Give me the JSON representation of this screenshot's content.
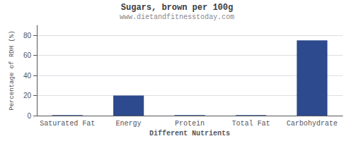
{
  "chart_data": {
    "type": "bar",
    "title": "Sugars, brown per 100g",
    "subtitle": "www.dietandfitnesstoday.com",
    "xlabel": "Different Nutrients",
    "ylabel": "Percentage of RDH (%)",
    "categories": [
      "Saturated Fat",
      "Energy",
      "Protein",
      "Total Fat",
      "Carbohydrate"
    ],
    "values": [
      0.5,
      20,
      0.5,
      0.5,
      75
    ],
    "color": "#2e4a8e",
    "ylim": [
      0,
      90
    ],
    "yticks": [
      0,
      20,
      40,
      60,
      80
    ],
    "grid": true
  }
}
